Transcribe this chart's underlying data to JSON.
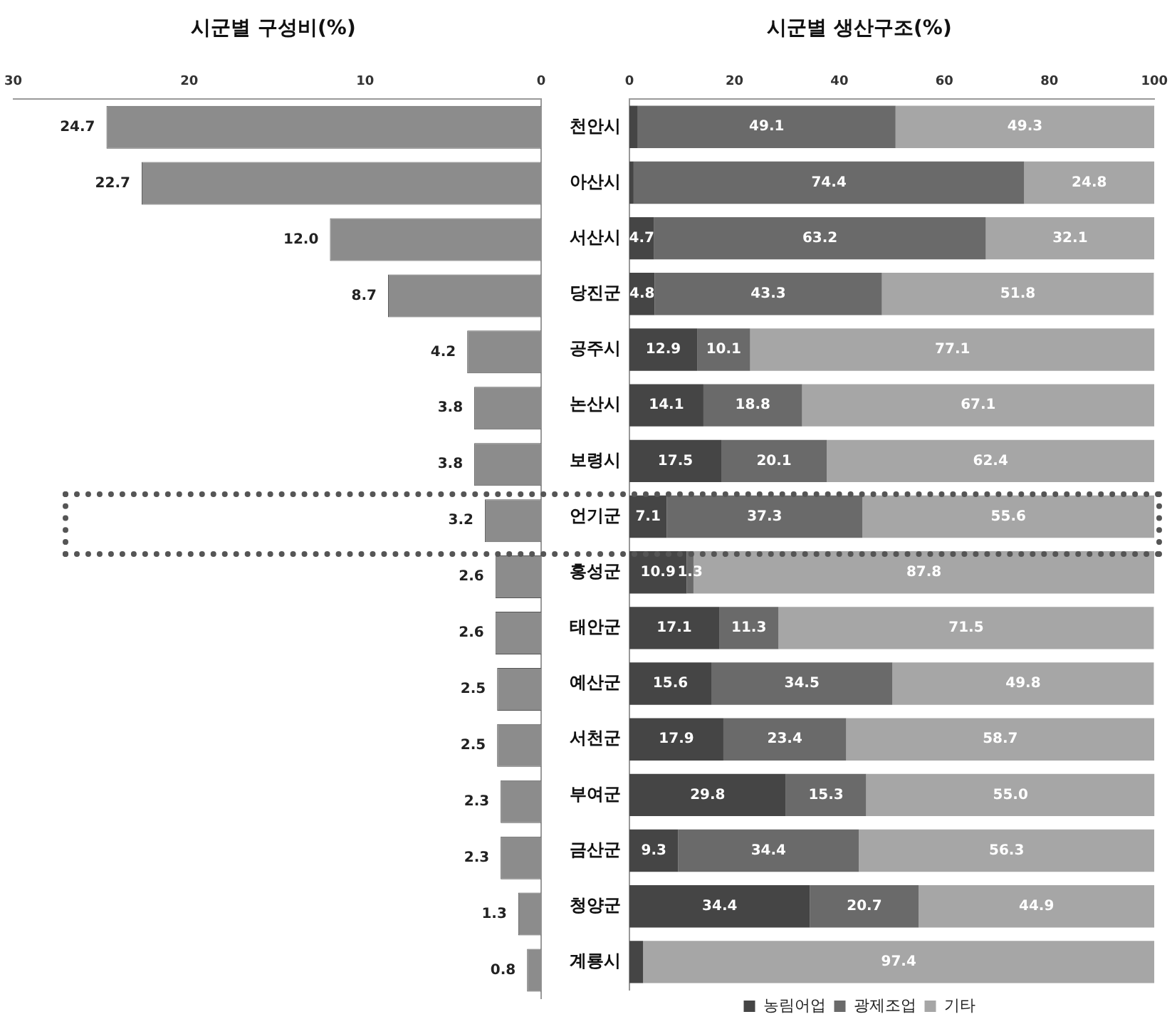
{
  "chart_data": [
    {
      "type": "bar",
      "orientation": "horizontal",
      "title": "시군별 구성비(%)",
      "values": [
        24.7,
        22.7,
        12.0,
        8.7,
        4.2,
        3.8,
        3.8,
        3.2,
        2.6,
        2.6,
        2.5,
        2.5,
        2.3,
        2.3,
        1.3,
        0.8
      ],
      "value_labels": [
        "24.7",
        "22.7",
        "12.0",
        "8.7",
        "4.2",
        "3.8",
        "3.8",
        "3.2",
        "2.6",
        "2.6",
        "2.5",
        "2.5",
        "2.3",
        "2.3",
        "1.3",
        "0.8"
      ],
      "color": "#8c8c8c",
      "xlim": [
        30,
        0
      ],
      "xticks": [
        30,
        20,
        10,
        0
      ],
      "tick_labels": "x"
    },
    {
      "type": "bar",
      "orientation": "horizontal",
      "stacked": true,
      "title": "시군별 생산구조(%)",
      "categories": [
        "천안시",
        "아산시",
        "서산시",
        "당진군",
        "공주시",
        "논산시",
        "보령시",
        "언기군",
        "홍성군",
        "태안군",
        "예산군",
        "서천군",
        "부여군",
        "금산군",
        "청양군",
        "계룡시"
      ],
      "xlim": [
        0,
        100
      ],
      "xticks": [
        0,
        20,
        40,
        60,
        80,
        100
      ],
      "legend": "bottom",
      "series": [
        {
          "name": "농림어업",
          "color": "#454545",
          "values": [
            1.6,
            0.8,
            4.7,
            4.8,
            12.9,
            14.1,
            17.5,
            7.1,
            10.9,
            17.1,
            15.6,
            17.9,
            29.8,
            9.3,
            34.4,
            2.6
          ],
          "value_labels": [
            null,
            null,
            "4.7",
            "4.8",
            "12.9",
            "14.1",
            "17.5",
            "7.1",
            "10.9",
            "17.1",
            "15.6",
            "17.9",
            "29.8",
            "9.3",
            "34.4",
            null
          ]
        },
        {
          "name": "광제조업",
          "color": "#6a6a6a",
          "values": [
            49.1,
            74.4,
            63.2,
            43.3,
            10.1,
            18.8,
            20.1,
            37.3,
            1.3,
            11.3,
            34.5,
            23.4,
            15.3,
            34.4,
            20.7,
            0
          ],
          "value_labels": [
            "49.1",
            "74.4",
            "63.2",
            "43.3",
            "10.1",
            "18.8",
            "20.1",
            "37.3",
            "1.3",
            "11.3",
            "34.5",
            "23.4",
            "15.3",
            "34.4",
            "20.7",
            null
          ]
        },
        {
          "name": "기타",
          "color": "#a6a6a6",
          "values": [
            49.3,
            24.8,
            32.1,
            51.8,
            77.1,
            67.1,
            62.4,
            55.6,
            87.8,
            71.5,
            49.8,
            58.7,
            55.0,
            56.3,
            44.9,
            97.4
          ],
          "value_labels": [
            "49.3",
            "24.8",
            "32.1",
            "51.8",
            "77.1",
            "67.1",
            "62.4",
            "55.6",
            "87.8",
            "71.5",
            "49.8",
            "58.7",
            "55.0",
            "56.3",
            "44.9",
            "97.4"
          ]
        }
      ]
    }
  ]
}
